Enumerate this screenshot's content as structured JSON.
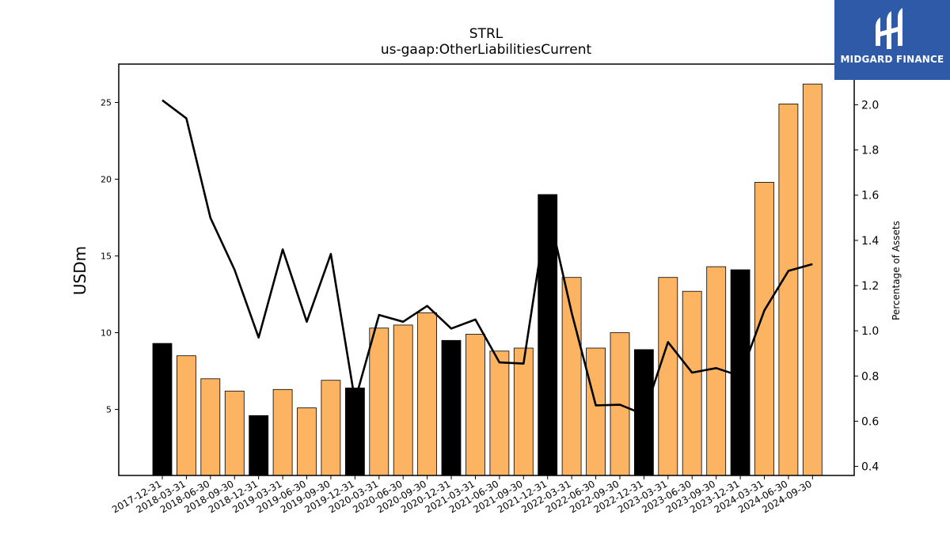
{
  "logo": {
    "text": "MIDGARD FINANCE"
  },
  "chart_data": {
    "type": "bar",
    "title": "STRL",
    "subtitle": "us-gaap:OtherLiabilitiesCurrent",
    "ylabel": "USDm",
    "y2label": "Percentage of Assets",
    "ylim": [
      0.7,
      27.5
    ],
    "y2lim": [
      0.36,
      2.18
    ],
    "yticks": [
      5,
      10,
      15,
      20,
      25
    ],
    "y2ticks": [
      0.4,
      0.6,
      0.8,
      1.0,
      1.2,
      1.4,
      1.6,
      1.8,
      2.0
    ],
    "categories": [
      "2017-12-31",
      "2018-03-31",
      "2018-06-30",
      "2018-09-30",
      "2018-12-31",
      "2019-03-31",
      "2019-06-30",
      "2019-09-30",
      "2019-12-31",
      "2020-03-31",
      "2020-06-30",
      "2020-09-30",
      "2020-12-31",
      "2021-03-31",
      "2021-06-30",
      "2021-09-30",
      "2021-12-31",
      "2022-03-31",
      "2022-06-30",
      "2022-09-30",
      "2022-12-31",
      "2023-03-31",
      "2023-06-30",
      "2023-09-30",
      "2023-12-31",
      "2024-03-31",
      "2024-06-30",
      "2024-09-30"
    ],
    "series": [
      {
        "type": "bar",
        "values": [
          9.3,
          8.5,
          7.0,
          6.2,
          4.6,
          6.3,
          5.1,
          6.9,
          6.4,
          10.3,
          10.5,
          11.3,
          9.5,
          9.9,
          8.8,
          9.0,
          19.0,
          13.6,
          9.0,
          10.0,
          8.9,
          13.6,
          12.7,
          14.3,
          14.1,
          19.8,
          24.9,
          26.2
        ]
      },
      {
        "type": "line",
        "axis": "right",
        "values": [
          2.02,
          1.94,
          1.5,
          1.27,
          0.97,
          1.36,
          1.04,
          1.34,
          0.69,
          1.07,
          1.04,
          1.11,
          1.01,
          1.05,
          0.86,
          0.855,
          1.55,
          1.08,
          0.67,
          0.673,
          0.63,
          0.95,
          0.815,
          0.835,
          0.8,
          1.09,
          1.265,
          1.295
        ]
      }
    ],
    "highlight_categories": [
      "2017-12-31",
      "2018-12-31",
      "2019-12-31",
      "2020-12-31",
      "2021-12-31",
      "2022-12-31",
      "2023-12-31"
    ],
    "colors": {
      "bar": "#fdb462",
      "bar_highlight": "#000000",
      "line": "#000000",
      "axes": "#000000"
    },
    "grid": false
  }
}
